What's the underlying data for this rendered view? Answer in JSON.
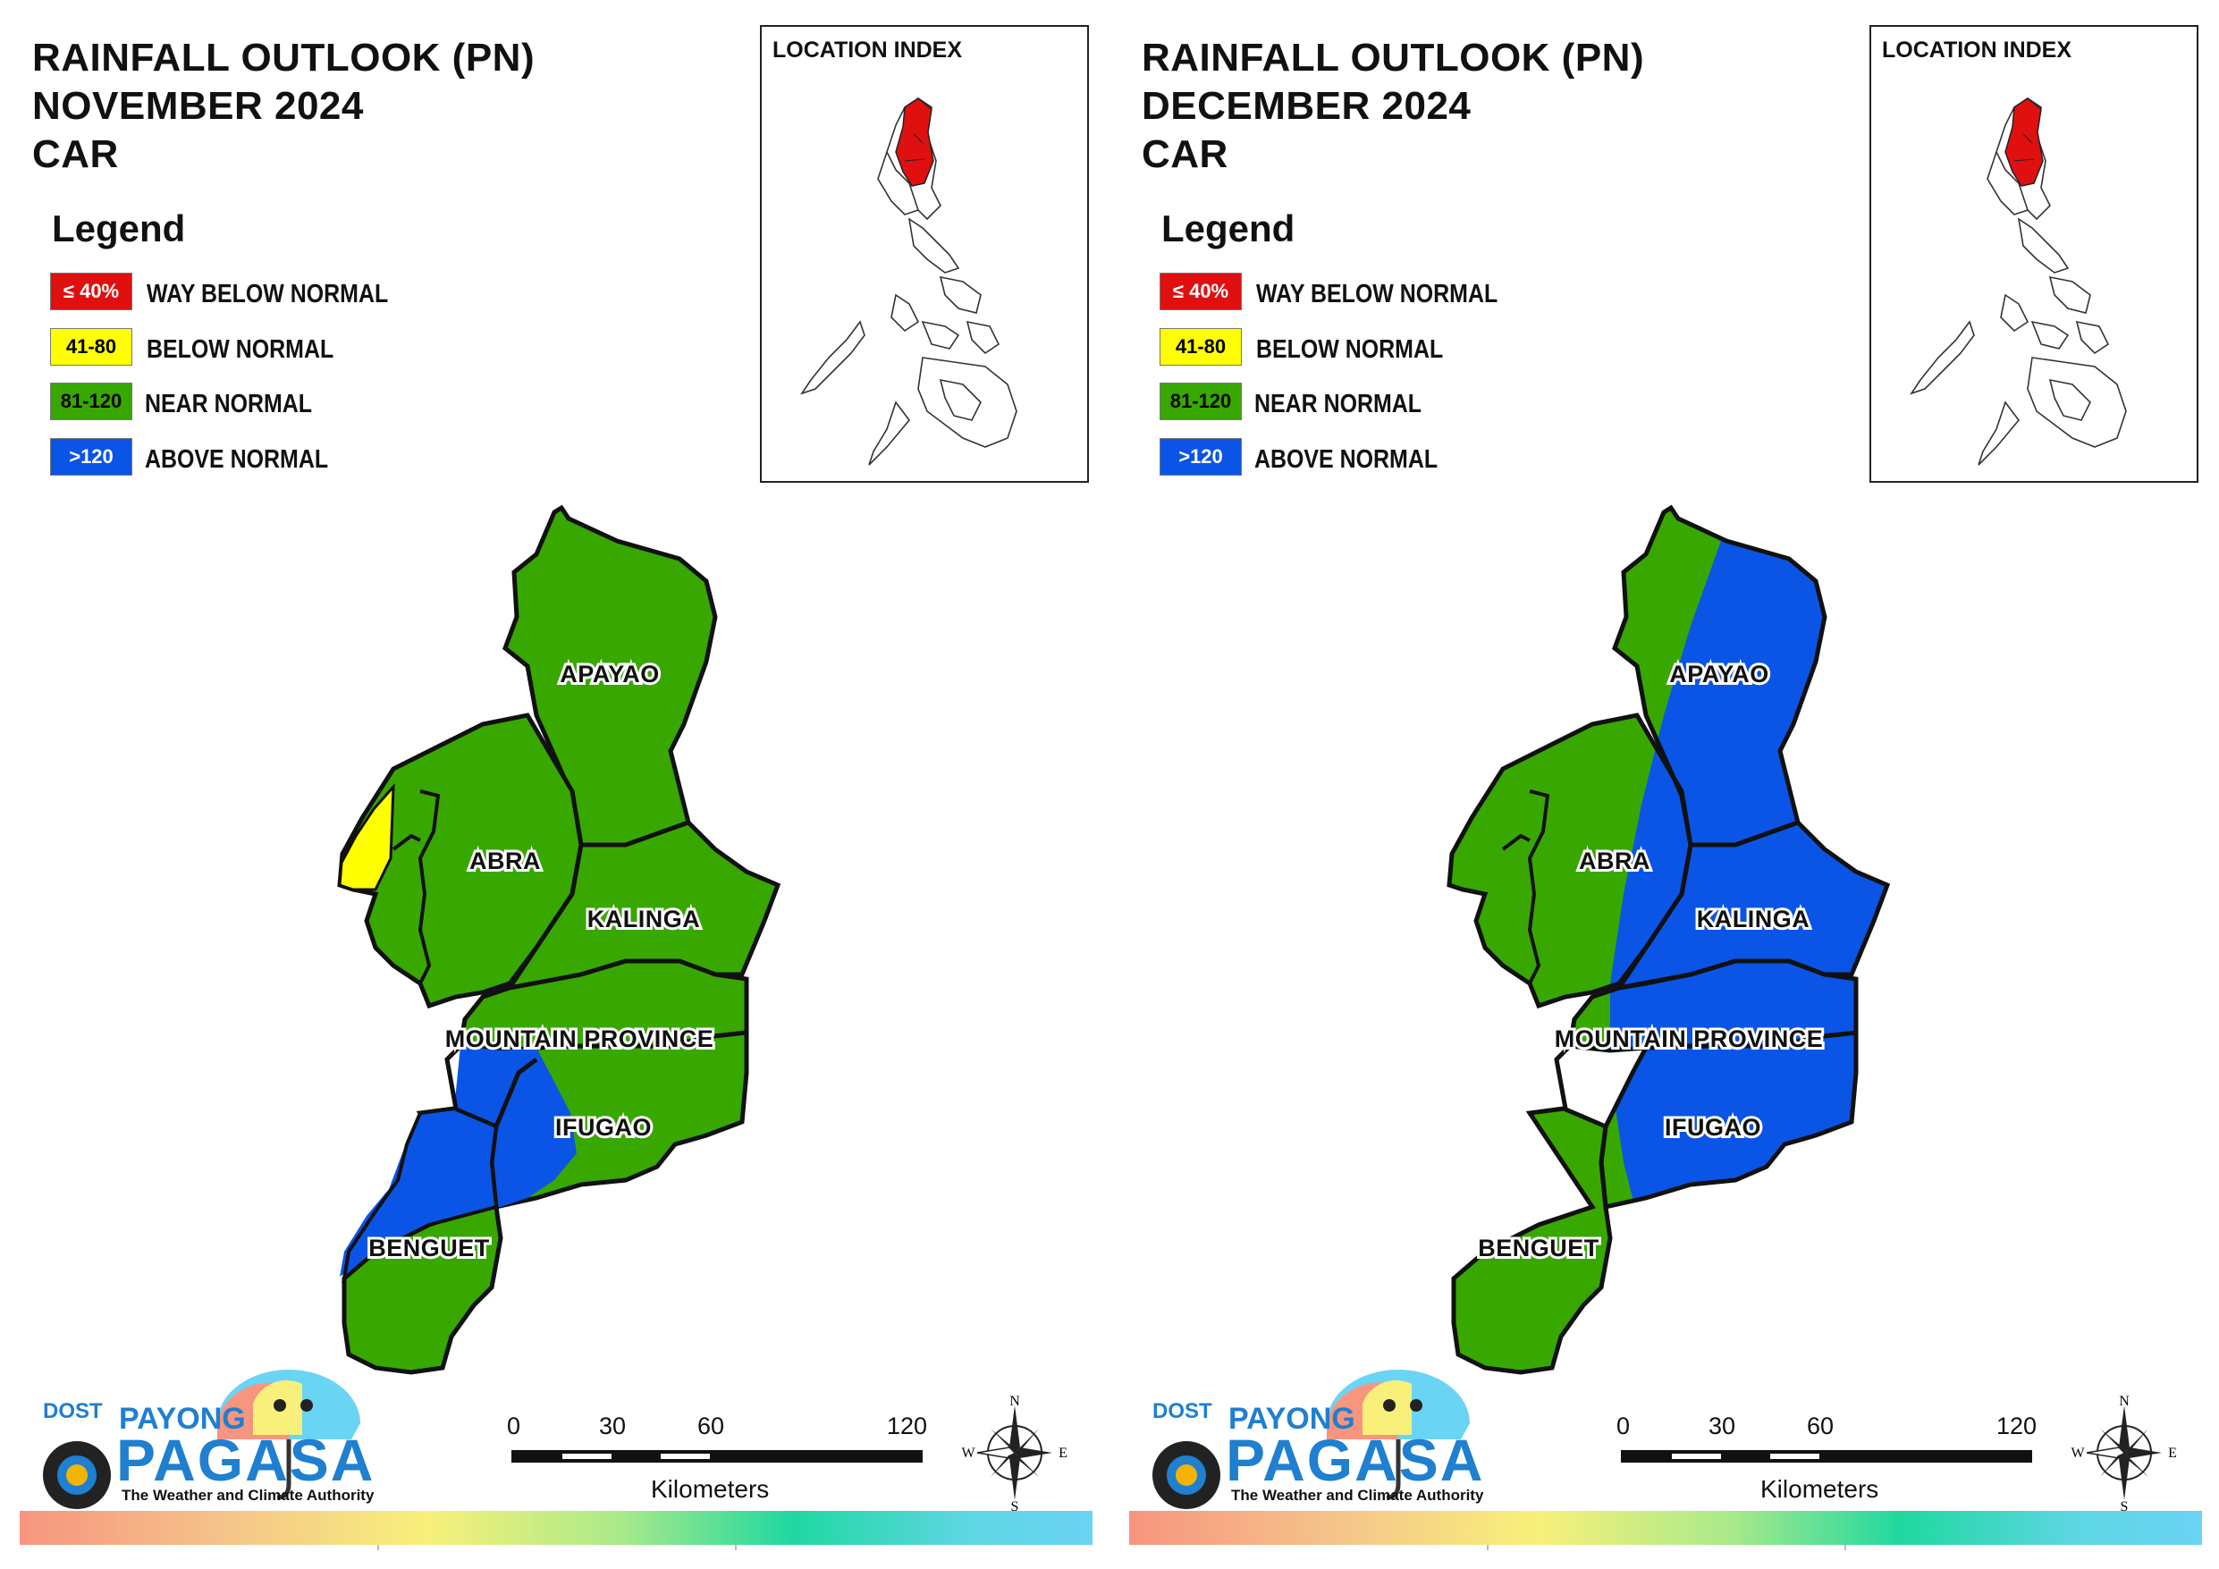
{
  "panels": [
    {
      "id": "left",
      "title_line1": "RAINFALL OUTLOOK (PN)",
      "title_line2": "NOVEMBER 2024",
      "title_line3": "CAR",
      "provinces": {
        "apayao": "APAYAO",
        "abra": "ABRA",
        "kalinga": "KALINGA",
        "mountain": "MOUNTAIN PROVINCE",
        "ifugao": "IFUGAO",
        "benguet": "BENGUET"
      }
    },
    {
      "id": "right",
      "title_line1": "RAINFALL OUTLOOK (PN)",
      "title_line2": "DECEMBER 2024",
      "title_line3": "CAR",
      "provinces": {
        "apayao": "APAYAO",
        "abra": "ABRA",
        "kalinga": "KALINGA",
        "mountain": "MOUNTAIN PROVINCE",
        "ifugao": "IFUGAO",
        "benguet": "BENGUET"
      }
    }
  ],
  "legend": {
    "title": "Legend",
    "items": [
      {
        "swatch": "≤ 40%",
        "label": "WAY BELOW NORMAL",
        "color": "#e01010",
        "text_color": "#ffffff"
      },
      {
        "swatch": "41-80",
        "label": "BELOW NORMAL",
        "color": "#ffff00",
        "text_color": "#000000"
      },
      {
        "swatch": "81-120",
        "label": "NEAR NORMAL",
        "color": "#38a800",
        "text_color": "#000000"
      },
      {
        "swatch": ">120",
        "label": "ABOVE NORMAL",
        "color": "#0a55e6",
        "text_color": "#ffffff"
      }
    ]
  },
  "location_index": {
    "title": "LOCATION INDEX"
  },
  "logo": {
    "org": "DOST",
    "brand_top": "PAYONG",
    "brand_main": "PAGASA",
    "tagline": "The Weather and Climate Authority"
  },
  "scale_bar": {
    "ticks": [
      "0",
      "30",
      "60",
      "120"
    ],
    "unit": "Kilometers"
  },
  "compass": {
    "n": "N",
    "s": "S",
    "e": "E",
    "w": "W"
  },
  "colors": {
    "near_normal": "#38a800",
    "above_normal": "#0a55e6",
    "below_normal": "#ffff00",
    "way_below_normal": "#e01010"
  }
}
